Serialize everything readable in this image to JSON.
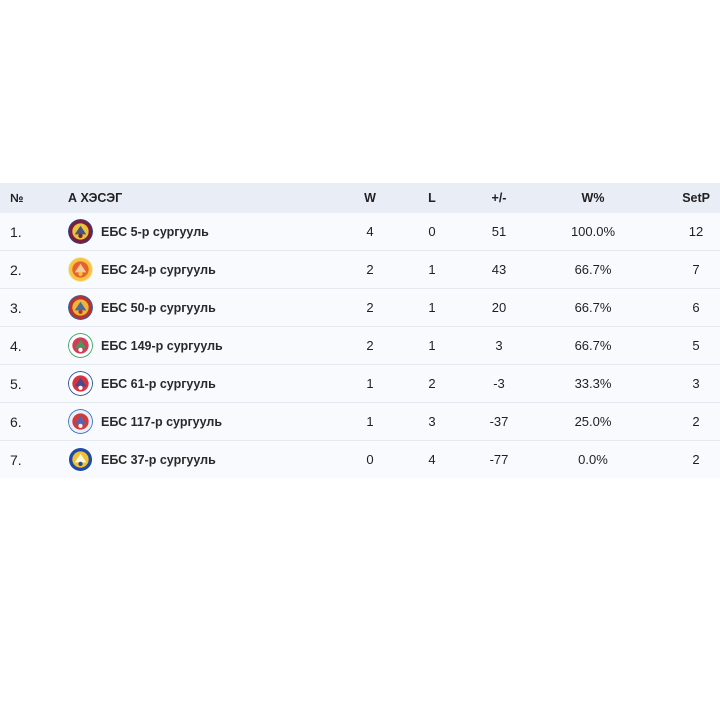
{
  "table": {
    "headers": {
      "rank": "№",
      "team": "А ХЭСЭГ",
      "wins": "W",
      "losses": "L",
      "diff": "+/-",
      "win_pct": "W%",
      "setp": "SetP"
    },
    "rows": [
      {
        "rank": "1.",
        "team": "ЕБС 5-р сургууль",
        "wins": "4",
        "losses": "0",
        "diff": "51",
        "win_pct": "100.0%",
        "setp": "12",
        "logo_icon": "school-5-emblem-icon",
        "logo_colors": [
          "#7b1e3a",
          "#e9c23a",
          "#2b3f8c"
        ]
      },
      {
        "rank": "2.",
        "team": "ЕБС 24-р сургууль",
        "wins": "2",
        "losses": "1",
        "diff": "43",
        "win_pct": "66.7%",
        "setp": "7",
        "logo_icon": "school-24-emblem-icon",
        "logo_colors": [
          "#f5c542",
          "#e8612c",
          "#f4e2b0"
        ]
      },
      {
        "rank": "3.",
        "team": "ЕБС 50-р сургууль",
        "wins": "2",
        "losses": "1",
        "diff": "20",
        "win_pct": "66.7%",
        "setp": "6",
        "logo_icon": "school-50-emblem-icon",
        "logo_colors": [
          "#b8332b",
          "#f0b43a",
          "#2d5fa8"
        ]
      },
      {
        "rank": "4.",
        "team": "ЕБС 149-р сургууль",
        "wins": "2",
        "losses": "1",
        "diff": "3",
        "win_pct": "66.7%",
        "setp": "5",
        "logo_icon": "school-149-emblem-icon",
        "logo_colors": [
          "#ffffff",
          "#d33b56",
          "#3aa35a"
        ]
      },
      {
        "rank": "5.",
        "team": "ЕБС 61-р сургууль",
        "wins": "1",
        "losses": "2",
        "diff": "-3",
        "win_pct": "33.3%",
        "setp": "3",
        "logo_icon": "school-61-emblem-icon",
        "logo_colors": [
          "#ffffff",
          "#d8323c",
          "#2d4fa0"
        ]
      },
      {
        "rank": "6.",
        "team": "ЕБС 117-р сургууль",
        "wins": "1",
        "losses": "3",
        "diff": "-37",
        "win_pct": "25.0%",
        "setp": "2",
        "logo_icon": "school-117-emblem-icon",
        "logo_colors": [
          "#eaf1fb",
          "#d23a3a",
          "#3b6fc4"
        ]
      },
      {
        "rank": "7.",
        "team": "ЕБС 37-р сургууль",
        "wins": "0",
        "losses": "4",
        "diff": "-77",
        "win_pct": "0.0%",
        "setp": "2",
        "logo_icon": "school-37-emblem-icon",
        "logo_colors": [
          "#1f4aa8",
          "#f2c230",
          "#ffffff"
        ]
      }
    ]
  }
}
